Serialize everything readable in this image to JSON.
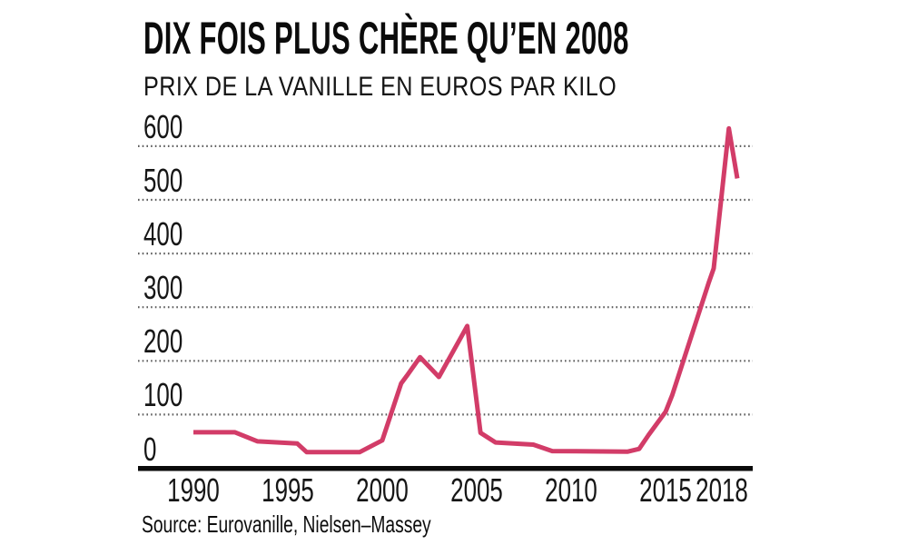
{
  "chart_data": {
    "type": "line",
    "title": "DIX FOIS PLUS CHÈRE QU’EN 2008",
    "subtitle": "PRIX DE LA VANILLE EN EUROS PAR KILO",
    "source": "Source: Eurovanille, Nielsen–Massey",
    "xlabel": "",
    "ylabel": "",
    "xlim": [
      1989.6,
      2019.3
    ],
    "ylim": [
      0,
      672
    ],
    "grid": "horizontal-dotted",
    "legend_position": "none",
    "x_ticks": [
      {
        "label": "1990",
        "year": 1990
      },
      {
        "label": "1995",
        "year": 1995
      },
      {
        "label": "2000",
        "year": 2000
      },
      {
        "label": "2005",
        "year": 2005
      },
      {
        "label": "2010",
        "year": 2010
      },
      {
        "label": "2015",
        "year": 2015
      },
      {
        "label": "2018",
        "year": 2018
      }
    ],
    "y_ticks": [
      {
        "label": "0",
        "value": 0
      },
      {
        "label": "100",
        "value": 100
      },
      {
        "label": "200",
        "value": 200
      },
      {
        "label": "300",
        "value": 300
      },
      {
        "label": "400",
        "value": 400
      },
      {
        "label": "500",
        "value": 500
      },
      {
        "label": "600",
        "value": 600
      }
    ],
    "series": [
      {
        "name": "Prix de la vanille (euros par kilo)",
        "points": [
          [
            1990,
            67
          ],
          [
            1992.2,
            67
          ],
          [
            1993.4,
            50
          ],
          [
            1995.5,
            46
          ],
          [
            1996,
            30
          ],
          [
            1998.8,
            30
          ],
          [
            2000,
            52
          ],
          [
            2001,
            158
          ],
          [
            2001.3,
            172
          ],
          [
            2002,
            207
          ],
          [
            2003,
            170
          ],
          [
            2004.5,
            265
          ],
          [
            2005.2,
            66
          ],
          [
            2006,
            48
          ],
          [
            2008,
            44
          ],
          [
            2009,
            32
          ],
          [
            2013,
            31
          ],
          [
            2013.6,
            36
          ],
          [
            2014.1,
            62
          ],
          [
            2015,
            105
          ],
          [
            2015.35,
            136
          ],
          [
            2017.3,
            347
          ],
          [
            2017.55,
            372
          ],
          [
            2018.35,
            633
          ],
          [
            2018.8,
            540
          ]
        ]
      }
    ],
    "colors": {
      "line": "#d23c68",
      "axis": "#0a0a0a",
      "grid_dots": "#5f5f5f",
      "text": "#141414"
    }
  }
}
